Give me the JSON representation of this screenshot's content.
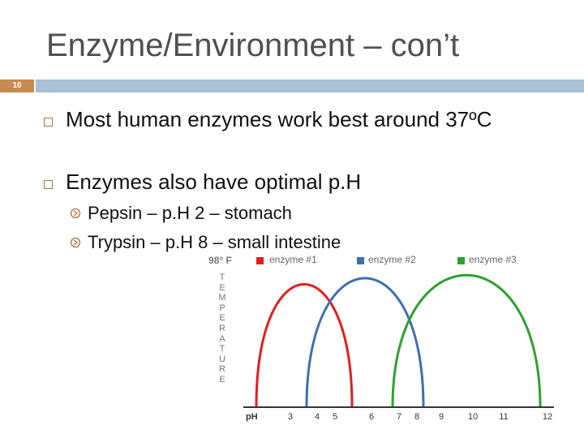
{
  "header": {
    "title": "Enzyme/Environment – con’t",
    "slide_number": "10"
  },
  "bullets": [
    {
      "text": "Most human enzymes work best around 37ºC"
    },
    {
      "text": "Enzymes also have optimal p.H",
      "sub_bullets": [
        "Pepsin – p.H 2 – stomach",
        "Trypsin – p.H 8 – small intestine"
      ]
    }
  ],
  "figure": {
    "temperature_label": "98° F",
    "legend": [
      "enzyme #1",
      "enzyme #2",
      "enzyme #3"
    ],
    "y_axis_label": "TEMPERATURE",
    "x_axis_label": "pH",
    "x_ticks": [
      "3",
      "4",
      "5",
      "6",
      "7",
      "8",
      "9",
      "10",
      "11",
      "12"
    ]
  }
}
